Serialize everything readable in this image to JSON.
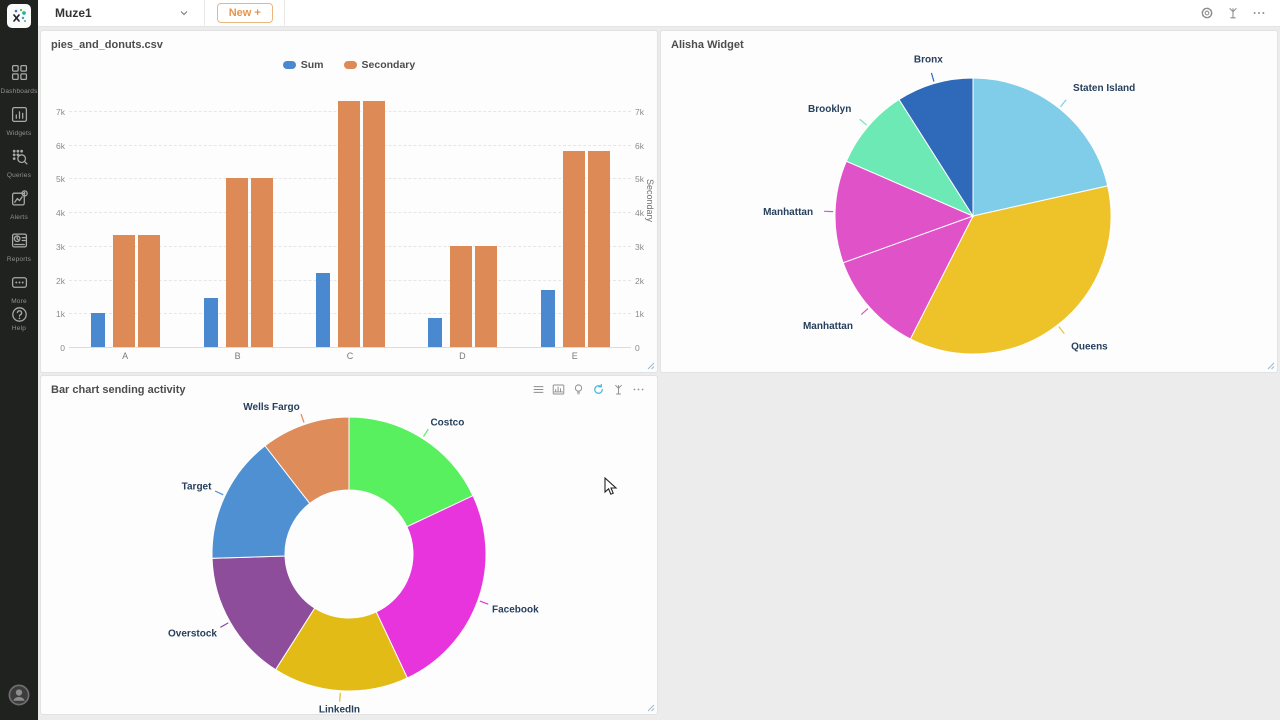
{
  "topbar": {
    "workspace_name": "Muze1",
    "new_button_label": "New +",
    "right_icons": [
      "settings",
      "publish",
      "more"
    ]
  },
  "sidebar": {
    "items": [
      {
        "label": "Dashboards",
        "icon": "dashboards"
      },
      {
        "label": "Widgets",
        "icon": "widgets"
      },
      {
        "label": "Queries",
        "icon": "queries"
      },
      {
        "label": "Alerts",
        "icon": "alerts"
      },
      {
        "label": "Reports",
        "icon": "reports"
      },
      {
        "label": "More",
        "icon": "morebox"
      }
    ],
    "help_label": "Help",
    "help_icon": "help",
    "avatar_icon": "avatar"
  },
  "widgets": {
    "donut_toolbar_icons": [
      "menu",
      "chart",
      "bulb",
      "refresh",
      "publish",
      "more"
    ]
  },
  "chart_data": [
    {
      "type": "bar",
      "title": "pies_and_donuts.csv",
      "categories": [
        "A",
        "B",
        "C",
        "D",
        "E"
      ],
      "series": [
        {
          "name": "Sum",
          "color": "#4a89d0",
          "axis": "left",
          "values": [
            1000,
            1450,
            2180,
            850,
            1700
          ]
        },
        {
          "name": "Secondary",
          "color": "#dd8a57",
          "axis": "left",
          "values": [
            3320,
            5000,
            7300,
            3000,
            5800
          ]
        },
        {
          "name": "Secondary",
          "color": "#dd8a57",
          "axis": "right",
          "values": [
            3320,
            5000,
            7300,
            3000,
            5800
          ]
        }
      ],
      "legend": [
        {
          "label": "Sum",
          "color": "#4a89d0"
        },
        {
          "label": "Secondary",
          "color": "#dd8a57"
        }
      ],
      "y_ticks": [
        "0",
        "1k",
        "2k",
        "3k",
        "4k",
        "5k",
        "6k",
        "7k"
      ],
      "y_tick_values": [
        0,
        1000,
        2000,
        3000,
        4000,
        5000,
        6000,
        7000
      ],
      "ylim": [
        0,
        7500
      ],
      "right_axis_label": "Secondary",
      "grid": true,
      "legend_position": "top"
    },
    {
      "type": "pie",
      "title": "Alisha Widget",
      "start_angle_deg": 0,
      "direction": "clockwise",
      "slices": [
        {
          "label": "Staten Island",
          "value": 21.5,
          "color": "#7fcde8"
        },
        {
          "label": "Queens",
          "value": 36.0,
          "color": "#eec32a"
        },
        {
          "label": "Manhattan",
          "value": 12.0,
          "color": "#df52c8"
        },
        {
          "label": "Manhattan",
          "value": 12.0,
          "color": "#df52c8"
        },
        {
          "label": "Brooklyn",
          "value": 9.5,
          "color": "#6ce9b4"
        },
        {
          "label": "Bronx",
          "value": 9.0,
          "color": "#2f69ba"
        }
      ]
    },
    {
      "type": "donut",
      "title": "Bar chart sending activity",
      "start_angle_deg": 0,
      "direction": "clockwise",
      "inner_radius_ratio": 0.47,
      "slices": [
        {
          "label": "Costco",
          "value": 18.0,
          "color": "#58f05e"
        },
        {
          "label": "Facebook",
          "value": 25.0,
          "color": "#e734dd"
        },
        {
          "label": "LinkedIn",
          "value": 16.0,
          "color": "#e3bb17"
        },
        {
          "label": "Overstock",
          "value": 15.5,
          "color": "#8d4d9b"
        },
        {
          "label": "Target",
          "value": 15.0,
          "color": "#4e90d2"
        },
        {
          "label": "Wells Fargo",
          "value": 10.5,
          "color": "#dd8c5a"
        }
      ]
    }
  ]
}
